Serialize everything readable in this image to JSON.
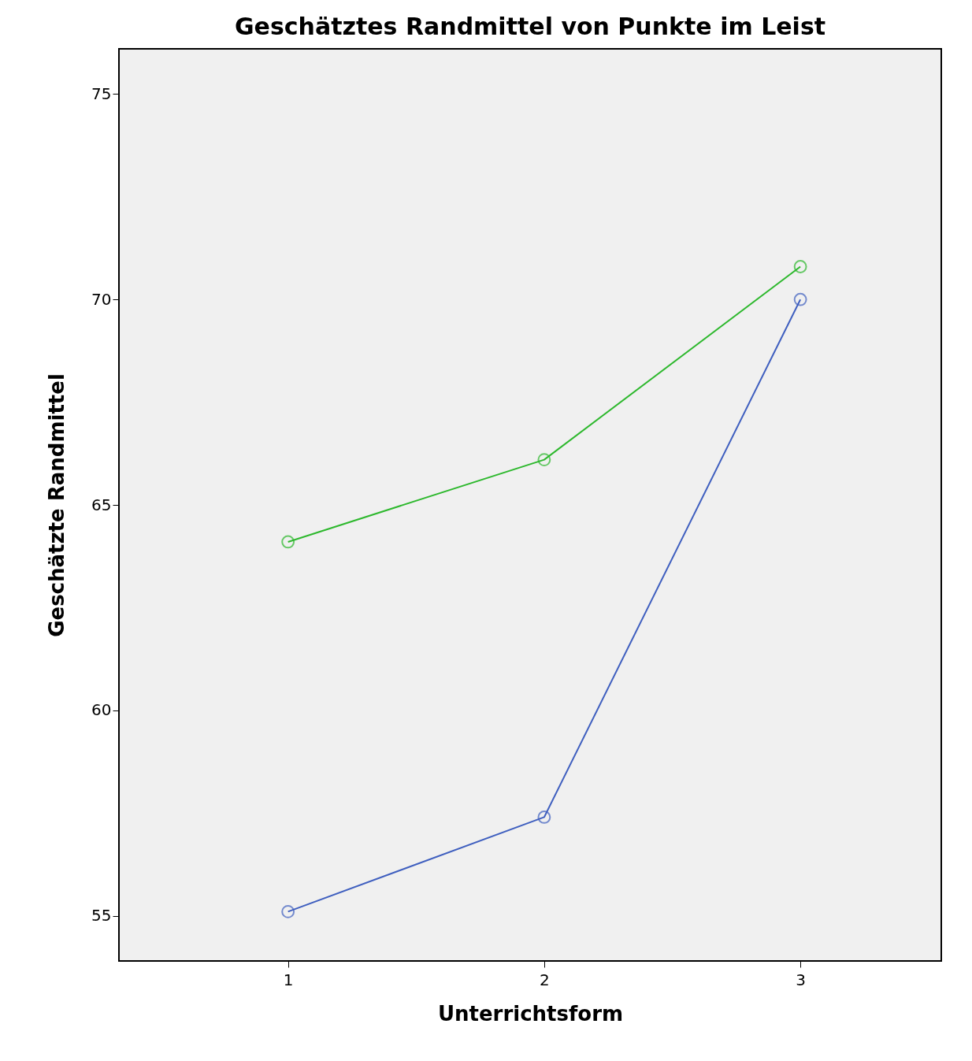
{
  "chart_data": {
    "type": "line",
    "title": "Geschätztes Randmittel von Punkte im Leist",
    "xlabel": "Unterrichtsform",
    "ylabel": "Geschätzte Randmittel",
    "x": [
      1,
      2,
      3
    ],
    "series": [
      {
        "color": "#2db82d",
        "values": [
          64.1,
          66.1,
          70.8
        ]
      },
      {
        "color": "#3f5fbf",
        "values": [
          55.1,
          57.4,
          70.0
        ]
      }
    ],
    "xlim": [
      0.34,
      3.55
    ],
    "xticks": [
      1,
      2,
      3
    ],
    "ylim": [
      53.9,
      76.1
    ],
    "yticks": [
      55,
      60,
      65,
      70,
      75
    ],
    "grid": false,
    "legend": false,
    "marker": "circle",
    "line_style": "solid"
  }
}
